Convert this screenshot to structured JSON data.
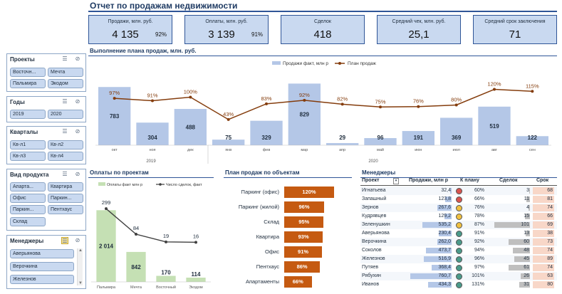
{
  "title": "Отчет по продажам недвижимости",
  "kpis": [
    {
      "label": "Продажи, млн. руб.",
      "value": "4 135",
      "pct": "92%"
    },
    {
      "label": "Оплаты, млн. руб.",
      "value": "3 139",
      "pct": "91%"
    },
    {
      "label": "Сделок",
      "value": "418",
      "pct": ""
    },
    {
      "label": "Средний чек, млн. руб.",
      "value": "25,1",
      "pct": ""
    },
    {
      "label": "Средний срок заключения",
      "value": "71",
      "pct": ""
    }
  ],
  "slicers": {
    "projects": {
      "title": "Проекты",
      "items": [
        "Восточн...",
        "Мечта",
        "Пальмира",
        "Экодом"
      ]
    },
    "years": {
      "title": "Годы",
      "items": [
        "2019",
        "2020"
      ]
    },
    "quarters": {
      "title": "Кварталы",
      "items": [
        "Кв-л1",
        "Кв-л2",
        "Кв-л3",
        "Кв-л4"
      ]
    },
    "product": {
      "title": "Вид продукта",
      "items": [
        "Апарта...",
        "Квартира",
        "Офис",
        "Паркин...",
        "Паркин...",
        "Пентхаус",
        "Склад"
      ]
    },
    "managers": {
      "title": "Менеджеры",
      "items": [
        "Аверьянова",
        "Верочкина",
        "Железнов"
      ]
    }
  },
  "plan_section": {
    "title": "Выполнение плана продаж, млн. руб.",
    "legend_fact": "Продажи факт, млн р",
    "legend_plan": "План продаж",
    "year_2019": "2019",
    "year_2020": "2020"
  },
  "payments_section": {
    "title": "Оплаты по проектам",
    "legend_fact": "Оплаты факт млн р",
    "legend_count": "Число сделок, факт"
  },
  "objects_section": {
    "title": "План продаж по объектам"
  },
  "managers_section": {
    "title": "Менеджеры",
    "headers": {
      "name": "Проект",
      "sales": "Продажи, млн р",
      "plan": "К плану",
      "deals": "Сделок",
      "term": "Срок"
    },
    "rows": [
      {
        "name": "Игнатьева",
        "sales": "32,4",
        "plan": "60%",
        "deals": "3",
        "term": "68",
        "dot": "#d9534f"
      },
      {
        "name": "Запашный",
        "sales": "123,8",
        "plan": "66%",
        "deals": "11",
        "term": "81",
        "dot": "#d9534f"
      },
      {
        "name": "Зернов",
        "sales": "267,6",
        "plan": "76%",
        "deals": "4",
        "term": "74",
        "dot": "#f0c040"
      },
      {
        "name": "Кудрявцев",
        "sales": "129,2",
        "plan": "78%",
        "deals": "15",
        "term": "66",
        "dot": "#f0c040"
      },
      {
        "name": "Зеленушкин",
        "sales": "535,2",
        "plan": "87%",
        "deals": "101",
        "term": "69",
        "dot": "#f0c040"
      },
      {
        "name": "Аверьянова",
        "sales": "230,4",
        "plan": "91%",
        "deals": "13",
        "term": "38",
        "dot": "#4a9a8a"
      },
      {
        "name": "Верочкина",
        "sales": "262,0",
        "plan": "92%",
        "deals": "60",
        "term": "73",
        "dot": "#4a9a8a"
      },
      {
        "name": "Соколов",
        "sales": "473,7",
        "plan": "94%",
        "deals": "48",
        "term": "74",
        "dot": "#4a9a8a"
      },
      {
        "name": "Железнов",
        "sales": "516,9",
        "plan": "96%",
        "deals": "45",
        "term": "89",
        "dot": "#4a9a8a"
      },
      {
        "name": "Путяев",
        "sales": "368,4",
        "plan": "97%",
        "deals": "61",
        "term": "74",
        "dot": "#4a9a8a"
      },
      {
        "name": "Рябухин",
        "sales": "760,7",
        "plan": "101%",
        "deals": "26",
        "term": "63",
        "dot": "#4a9a8a"
      },
      {
        "name": "Иванов",
        "sales": "434,3",
        "plan": "131%",
        "deals": "31",
        "term": "80",
        "dot": "#4a9a8a"
      }
    ]
  },
  "chart_data": [
    {
      "type": "bar",
      "title": "Выполнение плана продаж, млн. руб.",
      "categories": [
        "окт",
        "ноя",
        "дек",
        "янв",
        "фев",
        "мар",
        "апр",
        "май",
        "июн",
        "июл",
        "авг",
        "сен"
      ],
      "series": [
        {
          "name": "Продажи факт, млн р",
          "values": [
            783,
            304,
            488,
            75,
            329,
            829,
            29,
            96,
            191,
            369,
            519,
            122
          ]
        },
        {
          "name": "План продаж",
          "values": [
            97,
            91,
            100,
            43,
            83,
            92,
            82,
            75,
            76,
            80,
            120,
            115
          ],
          "labels": [
            "97%",
            "91%",
            "100%",
            "43%",
            "83%",
            "92%",
            "82%",
            "75%",
            "76%",
            "80%",
            "120%",
            "115%"
          ]
        }
      ],
      "groups": [
        {
          "label": "2019",
          "from": 0,
          "to": 2
        },
        {
          "label": "2020",
          "from": 3,
          "to": 11
        }
      ],
      "ylim": [
        0,
        900
      ]
    },
    {
      "type": "bar",
      "title": "Оплаты по проектам",
      "categories": [
        "Пальмира",
        "Мечта",
        "Восточный",
        "Экодом"
      ],
      "series": [
        {
          "name": "Оплаты факт млн р",
          "values": [
            2014,
            842,
            170,
            114
          ],
          "labels": [
            "2 014",
            "842",
            "170",
            "114"
          ]
        },
        {
          "name": "Число сделок, факт",
          "values": [
            299,
            84,
            19,
            16
          ]
        }
      ]
    },
    {
      "type": "bar",
      "title": "План продаж по объектам",
      "categories": [
        "Паркинг (офис)",
        "Паркинг (жилой)",
        "Склад",
        "Квартира",
        "Офис",
        "Пентхаус",
        "Апартаменты"
      ],
      "values": [
        120,
        96,
        95,
        93,
        91,
        86,
        66
      ],
      "labels": [
        "120%",
        "96%",
        "95%",
        "93%",
        "91%",
        "86%",
        "66%"
      ]
    }
  ],
  "colors": {
    "accent": "#2f5597",
    "bar_blue": "#b4c7e7",
    "plan_line": "#843c0c",
    "orange": "#c55a11",
    "green": "#c5e0b4"
  }
}
